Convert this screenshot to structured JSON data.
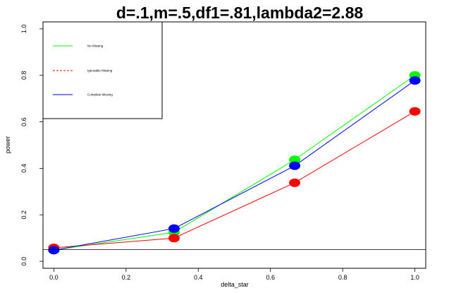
{
  "chart_data": {
    "type": "line",
    "title": "d=.1,m=.5,df1=.81,lambda2=2.88",
    "xlabel": "delta_star",
    "ylabel": "power",
    "xlim": [
      -0.03,
      1.03
    ],
    "ylim": [
      -0.03,
      1.03
    ],
    "x_ticks": [
      0.0,
      0.2,
      0.4,
      0.6,
      0.8,
      1.0
    ],
    "x_tick_labels": [
      "0.0",
      "0.2",
      "0.4",
      "0.6",
      "0.8",
      "1.0"
    ],
    "y_ticks": [
      0.0,
      0.2,
      0.4,
      0.6,
      0.8,
      1.0
    ],
    "y_tick_labels": [
      "0.0",
      "0.2",
      "0.4",
      "0.6",
      "0.8",
      "1.0"
    ],
    "hline": 0.05,
    "legend_position": "top-left",
    "series": [
      {
        "name": "No Missing",
        "color": "#00ff00",
        "dash": false,
        "x": [
          0,
          0.333,
          0.667,
          1.0
        ],
        "y": [
          0.048,
          0.125,
          0.437,
          0.8
        ]
      },
      {
        "name": "Ignorable Missing",
        "color": "#ff0000",
        "dash": true,
        "x": [
          0,
          0.333,
          0.667,
          1.0
        ],
        "y": [
          0.058,
          0.1,
          0.338,
          0.645
        ]
      },
      {
        "name": "Complete Missing",
        "color": "#0000ff",
        "dash": false,
        "x": [
          0,
          0.333,
          0.667,
          1.0
        ],
        "y": [
          0.048,
          0.141,
          0.411,
          0.778
        ]
      }
    ],
    "marker_series_order": [
      "No Missing",
      "Ignorable Missing",
      "Complete Missing"
    ]
  }
}
